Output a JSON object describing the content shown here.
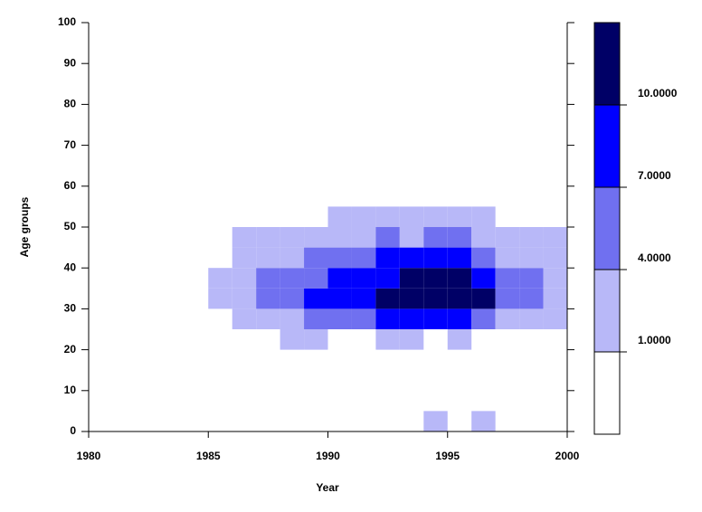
{
  "chart_data": {
    "type": "heatmap",
    "xlabel": "Year",
    "ylabel": "Age groups",
    "xlim": [
      1980,
      2000
    ],
    "xticks": [
      1980,
      1985,
      1990,
      1995,
      2000
    ],
    "ylim": [
      0,
      100
    ],
    "yticks": [
      0,
      10,
      20,
      30,
      40,
      50,
      60,
      70,
      80,
      90,
      100
    ],
    "x": [
      1985,
      1986,
      1987,
      1988,
      1989,
      1990,
      1991,
      1992,
      1993,
      1994,
      1995,
      1996,
      1997,
      1998,
      1999
    ],
    "y": [
      0,
      20,
      25,
      30,
      35,
      40,
      45,
      50
    ],
    "z": [
      [
        null,
        null,
        null,
        null,
        null,
        null,
        null,
        null,
        null,
        2.5,
        null,
        2.5,
        null,
        null,
        null
      ],
      [
        null,
        null,
        null,
        2.5,
        2.5,
        null,
        null,
        2.5,
        2.5,
        null,
        2.5,
        null,
        null,
        null,
        null
      ],
      [
        null,
        2.5,
        2.5,
        2.5,
        5.5,
        5.5,
        5.5,
        8.5,
        8.5,
        8.5,
        8.5,
        5.5,
        2.5,
        2.5,
        2.5
      ],
      [
        2.5,
        2.5,
        5.5,
        5.5,
        8.5,
        8.5,
        8.5,
        11.5,
        11.5,
        11.5,
        11.5,
        11.5,
        5.5,
        5.5,
        2.5
      ],
      [
        2.5,
        2.5,
        5.5,
        5.5,
        5.5,
        8.5,
        8.5,
        8.5,
        11.5,
        11.5,
        11.5,
        8.5,
        5.5,
        5.5,
        2.5
      ],
      [
        null,
        2.5,
        2.5,
        2.5,
        5.5,
        5.5,
        5.5,
        8.5,
        8.5,
        8.5,
        8.5,
        5.5,
        2.5,
        2.5,
        2.5
      ],
      [
        null,
        2.5,
        2.5,
        2.5,
        2.5,
        2.5,
        2.5,
        5.5,
        2.5,
        5.5,
        5.5,
        2.5,
        2.5,
        2.5,
        2.5
      ],
      [
        null,
        null,
        null,
        null,
        null,
        2.5,
        2.5,
        2.5,
        2.5,
        2.5,
        2.5,
        2.5,
        null,
        null,
        null
      ]
    ],
    "zlim": [
      -2,
      13
    ],
    "zticks": [
      {
        "value": 1,
        "label": "1.0000"
      },
      {
        "value": 4,
        "label": "4.0000"
      },
      {
        "value": 7,
        "label": "7.0000"
      },
      {
        "value": 10,
        "label": "10.0000"
      }
    ],
    "colors": [
      "#ffffff",
      "#b8b8f8",
      "#7070f0",
      "#0000ff",
      "#000066"
    ]
  }
}
